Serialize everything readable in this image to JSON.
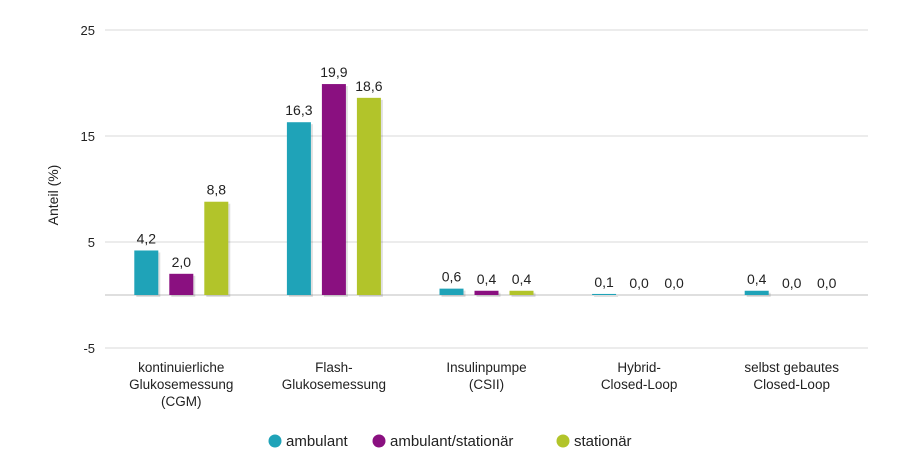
{
  "chart_data": {
    "type": "bar",
    "title": "",
    "xlabel": "",
    "ylabel": "Anteil (%)",
    "ylim": [
      -5,
      25
    ],
    "yticks": [
      25,
      15,
      5,
      -5
    ],
    "grid": true,
    "legend_position": "bottom",
    "categories": [
      [
        "kontinuierliche",
        "Glukosemessung",
        "(CGM)"
      ],
      [
        "Flash-",
        "Glukosemessung"
      ],
      [
        "Insulinpumpe",
        "(CSII)"
      ],
      [
        "Hybrid-",
        "Closed-Loop"
      ],
      [
        "selbst gebautes",
        "Closed-Loop"
      ]
    ],
    "series": [
      {
        "name": "ambulant",
        "color": "#1fa3b8",
        "values": [
          4.2,
          16.3,
          0.6,
          0.1,
          0.4
        ],
        "labels": [
          "4,2",
          "16,3",
          "0,6",
          "0,1",
          "0,4"
        ]
      },
      {
        "name": "ambulant/stationär",
        "color": "#8a1080",
        "values": [
          2.0,
          19.9,
          0.4,
          0.0,
          0.0
        ],
        "labels": [
          "2,0",
          "19,9",
          "0,4",
          "0,0",
          "0,0"
        ]
      },
      {
        "name": "stationär",
        "color": "#b2c42a",
        "values": [
          8.8,
          18.6,
          0.4,
          0.0,
          0.0
        ],
        "labels": [
          "8,8",
          "18,6",
          "0,4",
          "0,0",
          "0,0"
        ]
      }
    ]
  }
}
